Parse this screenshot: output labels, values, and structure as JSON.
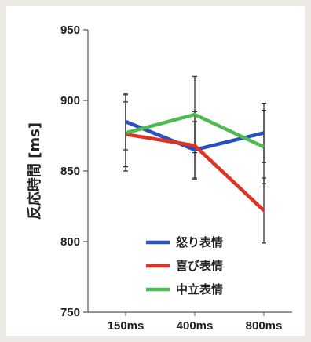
{
  "chart_data": {
    "type": "line",
    "categories": [
      "150ms",
      "400ms",
      "800ms"
    ],
    "ylabel": "反応時間 [ms]",
    "xlabel": "",
    "ylim": [
      750,
      950
    ],
    "yticks": [
      750,
      800,
      850,
      900,
      950
    ],
    "grid": false,
    "legend_position": "bottom-right",
    "series": [
      {
        "name": "怒り表情",
        "color": "#2a4fbe",
        "values": [
          885,
          865,
          877
        ],
        "err": [
          20,
          20,
          21
        ]
      },
      {
        "name": "喜び表情",
        "color": "#e03222",
        "values": [
          876,
          868,
          822
        ],
        "err": [
          23,
          24,
          23
        ]
      },
      {
        "name": "中立表情",
        "color": "#4dbb4f",
        "values": [
          877,
          890,
          867
        ],
        "err": [
          27,
          27,
          26
        ]
      }
    ]
  }
}
